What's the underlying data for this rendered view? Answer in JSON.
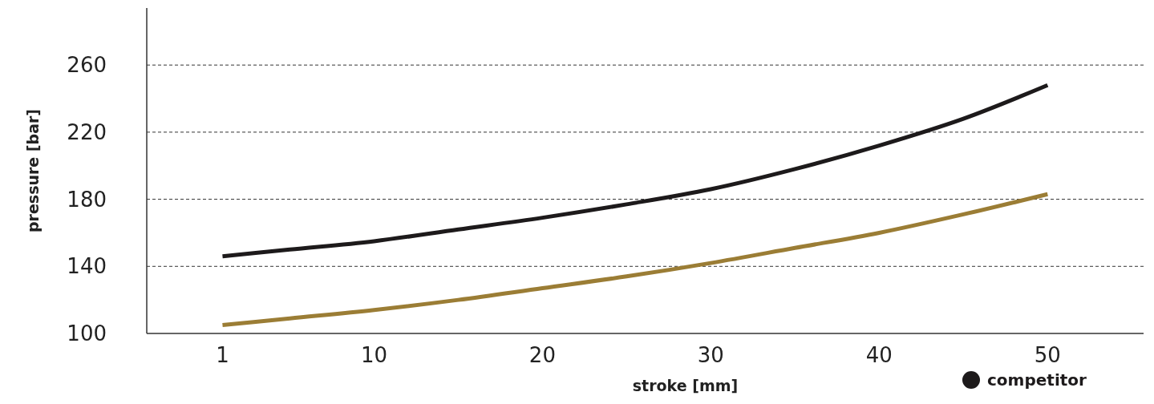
{
  "chart_data": {
    "type": "line",
    "xlabel": "stroke [mm]",
    "ylabel": "pressure [bar]",
    "x": [
      1,
      5,
      10,
      15,
      20,
      25,
      30,
      35,
      40,
      45,
      50
    ],
    "series": [
      {
        "color": "#9b7d35",
        "values": [
          105,
          109,
          114,
          120,
          127,
          134,
          142,
          151,
          160,
          171,
          183
        ]
      },
      {
        "name": "competitor",
        "color": "#1d1a1b",
        "values": [
          146,
          150,
          155,
          162,
          169,
          177,
          186,
          198,
          212,
          228,
          248
        ]
      }
    ],
    "xlim": [
      -3.5,
      55.7
    ],
    "xticks": [
      1,
      10,
      20,
      30,
      40,
      50
    ],
    "ylim": [
      100,
      294
    ],
    "yticks": [
      100,
      140,
      180,
      220,
      260
    ],
    "grid": "y",
    "legend": "bottom right",
    "line_style": "solid",
    "marker": "none"
  }
}
